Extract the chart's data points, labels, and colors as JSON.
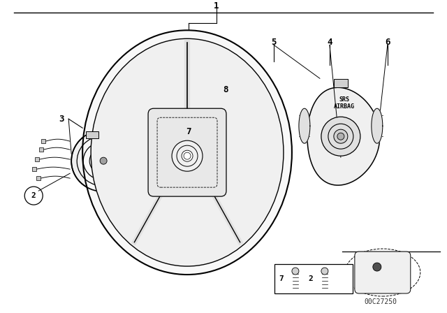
{
  "bg_color": "#ffffff",
  "line_color": "#000000",
  "diagram_code": "00C27250",
  "gray_fill": "#f0f0f0",
  "light_gray": "#d0d0d0",
  "dark_gray": "#808080"
}
